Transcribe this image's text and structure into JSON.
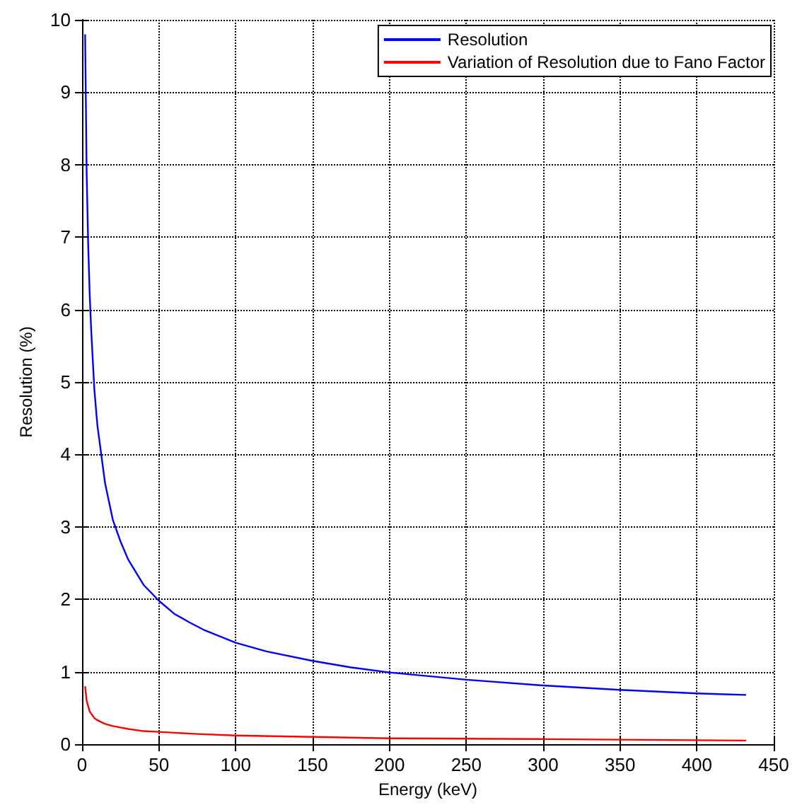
{
  "chart_data": {
    "type": "line",
    "xlabel": "Energy (keV)",
    "ylabel": "Resolution (%)",
    "xlim": [
      0,
      450
    ],
    "xticks": [
      0,
      50,
      100,
      150,
      200,
      250,
      300,
      350,
      400,
      450
    ],
    "ylim": [
      0,
      10
    ],
    "yticks": [
      0,
      1,
      2,
      3,
      4,
      5,
      6,
      7,
      8,
      9,
      10
    ],
    "grid": true,
    "legend": "top right",
    "marker": "none",
    "line_style": "solid",
    "series": [
      {
        "name": "Resolution",
        "color": "#0000ff",
        "x": [
          2,
          3,
          4,
          5,
          6,
          8,
          10,
          15,
          20,
          25,
          30,
          40,
          50,
          60,
          70,
          80,
          100,
          120,
          150,
          175,
          200,
          250,
          300,
          350,
          400,
          432
        ],
        "values": [
          9.8,
          7.9,
          6.9,
          6.2,
          5.7,
          4.9,
          4.4,
          3.6,
          3.1,
          2.8,
          2.55,
          2.2,
          1.98,
          1.8,
          1.68,
          1.57,
          1.4,
          1.28,
          1.15,
          1.06,
          0.99,
          0.89,
          0.81,
          0.75,
          0.7,
          0.68
        ]
      },
      {
        "name": "Variation of Resolution due to Fano Factor",
        "color": "#ff0000",
        "x": [
          2,
          3,
          5,
          8,
          10,
          15,
          20,
          30,
          40,
          50,
          75,
          100,
          150,
          200,
          300,
          365,
          432
        ],
        "values": [
          0.8,
          0.6,
          0.45,
          0.36,
          0.33,
          0.28,
          0.25,
          0.21,
          0.18,
          0.17,
          0.14,
          0.12,
          0.1,
          0.08,
          0.07,
          0.06,
          0.05
        ]
      }
    ]
  }
}
